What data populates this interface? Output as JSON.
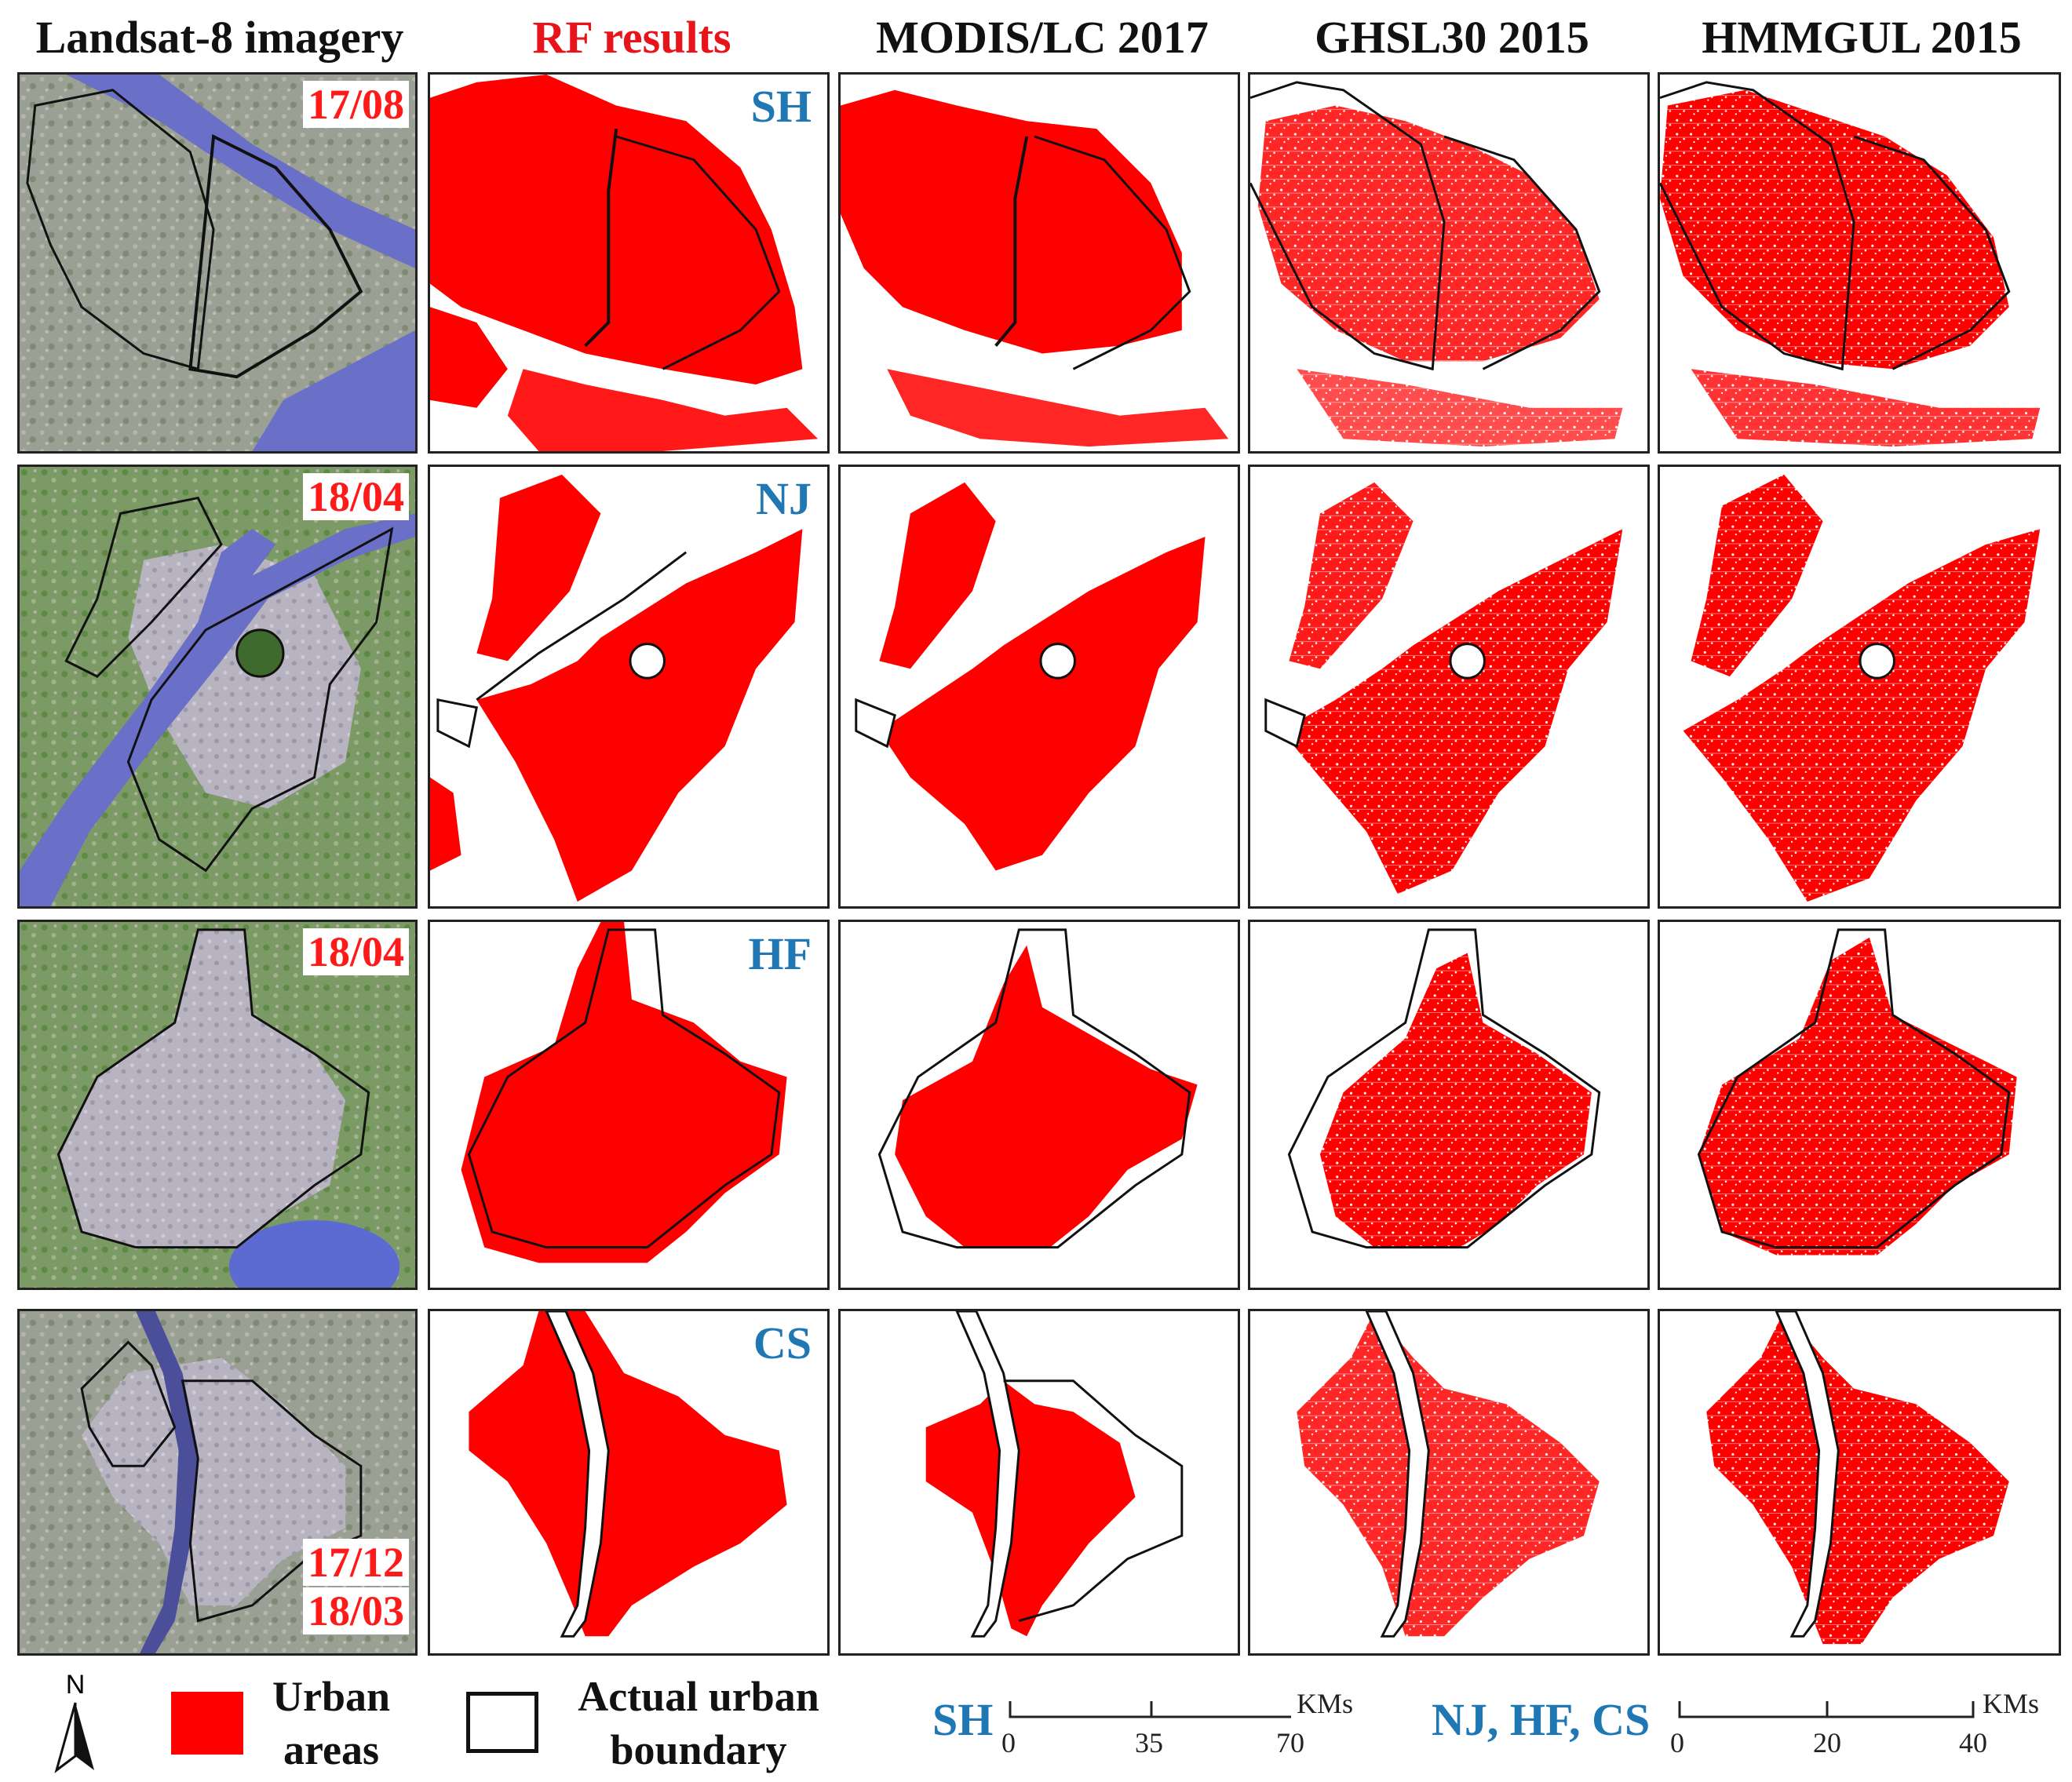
{
  "columns": [
    "Landsat-8 imagery",
    "RF results",
    "MODIS/LC 2017",
    "GHSL30 2015",
    "HMMGUL 2015"
  ],
  "rows": [
    {
      "city": "SH",
      "dates": [
        "17/08"
      ]
    },
    {
      "city": "NJ",
      "dates": [
        "18/04"
      ]
    },
    {
      "city": "HF",
      "dates": [
        "18/04"
      ]
    },
    {
      "city": "CS",
      "dates": [
        "17/12",
        "18/03"
      ]
    }
  ],
  "legend": {
    "north": "N",
    "urban_line1": "Urban",
    "urban_line2": "areas",
    "boundary_line1": "Actual urban",
    "boundary_line2": "boundary"
  },
  "scale_sh": {
    "label": "SH",
    "ticks": [
      "0",
      "35",
      "70"
    ],
    "unit": "KMs"
  },
  "scale_other": {
    "label": "NJ, HF, CS",
    "ticks": [
      "0",
      "20",
      "40"
    ],
    "unit": "KMs"
  },
  "colors": {
    "urban": "#ff0000",
    "city_label": "#1f78b4",
    "date_label": "#ff1a1a",
    "water": "#6a6fc7"
  }
}
